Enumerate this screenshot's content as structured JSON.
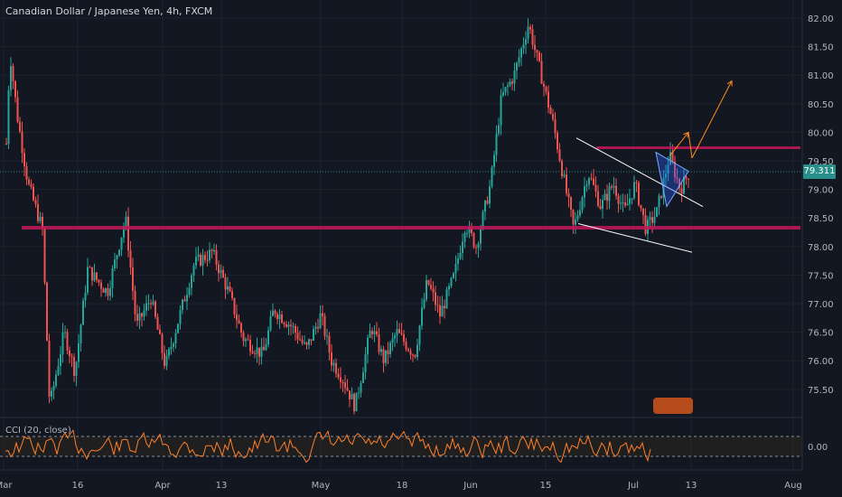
{
  "header": {
    "title": "Canadian Dollar / Japanese Yen, 4h, FXCM"
  },
  "indicator": {
    "label": "CCI (20, close)",
    "value_label": "0.00"
  },
  "price_badge": "79.311",
  "colors": {
    "background": "#131722",
    "grid": "#1e222d",
    "up_candle": "#26a69a",
    "down_candle": "#ef5350",
    "support_resistance": "#c2185b",
    "trendline": "#ffffff",
    "arrow": "#ff8c1a",
    "cci_line": "#ff7f2a",
    "triangle_fill": "#2962ff"
  },
  "chart_data": {
    "type": "candlestick",
    "symbol": "Canadian Dollar / Japanese Yen",
    "timeframe": "4h",
    "source": "FXCM",
    "y_ticks": [
      "82.00",
      "81.50",
      "81.00",
      "80.50",
      "80.00",
      "79.50",
      "79.00",
      "78.50",
      "78.00",
      "77.50",
      "77.00",
      "76.50",
      "76.00",
      "75.50"
    ],
    "y_range": [
      75.0,
      82.3
    ],
    "x_ticks": [
      "Mar",
      "16",
      "Apr",
      "13",
      "May",
      "18",
      "Jun",
      "15",
      "Jul",
      "13",
      "Aug"
    ],
    "current_price": 79.311,
    "horizontal_levels": [
      78.33,
      79.73
    ],
    "price_path": [
      [
        0,
        79.8
      ],
      [
        0.2,
        81.4
      ],
      [
        0.6,
        80.3
      ],
      [
        1.2,
        79.1
      ],
      [
        2.0,
        78.3
      ],
      [
        2.4,
        75.2
      ],
      [
        3.2,
        76.5
      ],
      [
        3.8,
        75.8
      ],
      [
        4.5,
        77.6
      ],
      [
        5.6,
        77.2
      ],
      [
        6.6,
        78.5
      ],
      [
        7.2,
        76.6
      ],
      [
        8.0,
        77.1
      ],
      [
        8.8,
        75.9
      ],
      [
        9.6,
        76.8
      ],
      [
        10.4,
        77.7
      ],
      [
        11.4,
        77.9
      ],
      [
        12.3,
        77.2
      ],
      [
        13.1,
        76.4
      ],
      [
        14.2,
        76.1
      ],
      [
        14.8,
        76.9
      ],
      [
        15.8,
        76.6
      ],
      [
        16.6,
        76.2
      ],
      [
        17.4,
        76.8
      ],
      [
        18.0,
        76.0
      ],
      [
        18.6,
        75.7
      ],
      [
        19.3,
        75.2
      ],
      [
        20.2,
        76.6
      ],
      [
        20.9,
        76.0
      ],
      [
        21.6,
        76.5
      ],
      [
        22.6,
        76.1
      ],
      [
        23.3,
        77.4
      ],
      [
        24.0,
        76.8
      ],
      [
        24.8,
        77.5
      ],
      [
        25.4,
        78.4
      ],
      [
        26.0,
        78.0
      ],
      [
        26.8,
        79.1
      ],
      [
        27.4,
        80.6
      ],
      [
        28.1,
        81.0
      ],
      [
        28.9,
        81.9
      ],
      [
        29.6,
        81.0
      ],
      [
        30.3,
        80.1
      ],
      [
        30.9,
        79.1
      ],
      [
        31.4,
        78.3
      ],
      [
        32.2,
        79.3
      ],
      [
        32.9,
        78.7
      ],
      [
        33.6,
        79.1
      ],
      [
        34.2,
        78.6
      ],
      [
        34.8,
        79.1
      ],
      [
        35.4,
        78.3
      ],
      [
        36.0,
        78.6
      ],
      [
        36.7,
        79.6
      ],
      [
        37.3,
        79.0
      ],
      [
        37.8,
        79.3
      ]
    ],
    "pattern_lines": [
      {
        "type": "trendline",
        "from": [
          31.6,
          79.9
        ],
        "to": [
          38.6,
          78.7
        ]
      },
      {
        "type": "trendline",
        "from": [
          31.7,
          78.4
        ],
        "to": [
          38.0,
          77.9
        ]
      }
    ],
    "projection_arrows": [
      {
        "from": [
          36.8,
          79.6
        ],
        "to": [
          37.8,
          80.0
        ]
      },
      {
        "from": [
          38.0,
          79.55
        ],
        "to": [
          40.2,
          80.9
        ]
      }
    ],
    "cci": {
      "zero_line": 0.0,
      "bands": [
        100,
        -100
      ]
    }
  }
}
